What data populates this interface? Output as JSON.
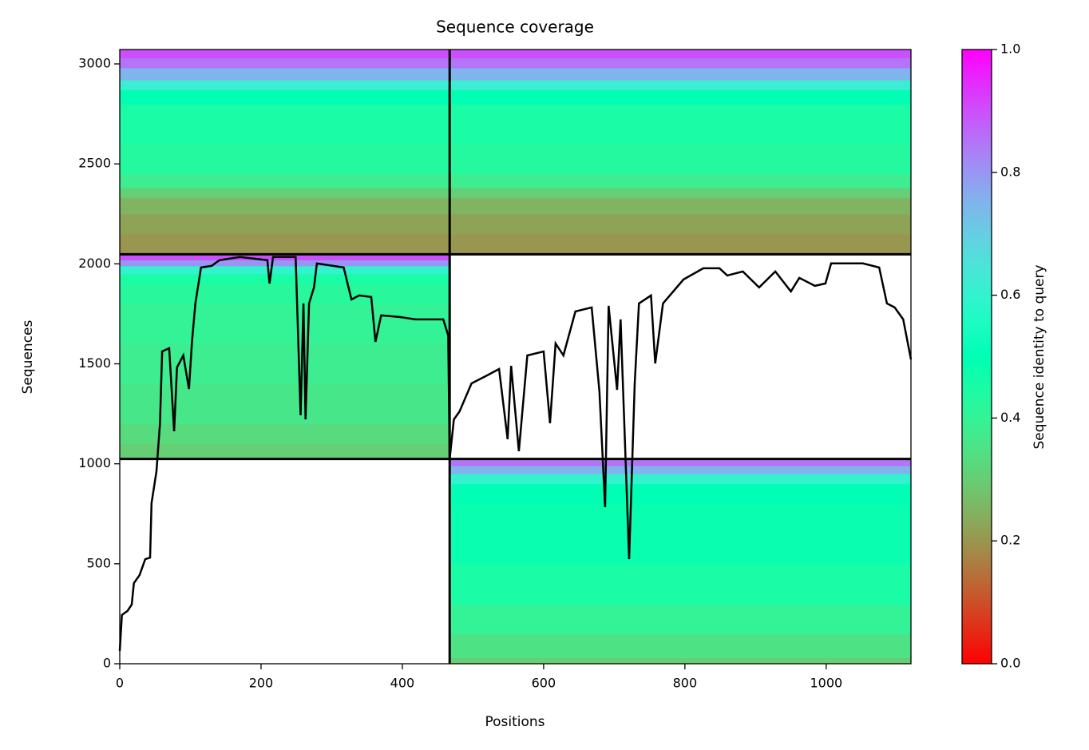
{
  "chart_data": {
    "type": "coverage",
    "title": "Sequence coverage",
    "x_label": "Positions",
    "y_label": "Sequences",
    "xlim": [
      0,
      1120
    ],
    "xticks": [
      0,
      200,
      400,
      600,
      800,
      1000
    ],
    "ylim": [
      0,
      3072
    ],
    "yticks": [
      0,
      500,
      1000,
      1500,
      2000,
      2500,
      3000
    ],
    "blocks": [
      {
        "x": [
          0,
          1120
        ],
        "rows": [
          2048,
          2150,
          2250,
          2330,
          2380,
          2450,
          2600,
          2800,
          2870,
          2920,
          2980,
          3030,
          3072
        ],
        "identity": [
          0.2,
          0.22,
          0.25,
          0.3,
          0.38,
          0.43,
          0.45,
          0.5,
          0.62,
          0.75,
          0.85,
          0.9
        ]
      },
      {
        "x": [
          0,
          467
        ],
        "rows": [
          1024,
          1100,
          1200,
          1400,
          1600,
          1800,
          1900,
          1950,
          1990,
          2020,
          2048
        ],
        "identity": [
          0.3,
          0.33,
          0.36,
          0.38,
          0.4,
          0.42,
          0.45,
          0.6,
          0.8,
          0.9
        ]
      },
      {
        "x": [
          467,
          1120
        ],
        "rows": [
          0,
          30,
          150,
          300,
          500,
          800,
          900,
          950,
          990,
          1024
        ],
        "identity": [
          0.3,
          0.35,
          0.4,
          0.45,
          0.48,
          0.5,
          0.6,
          0.75,
          0.85
        ]
      }
    ],
    "dividers": {
      "x": [
        467
      ],
      "y": [
        1024,
        2048
      ]
    },
    "coverage": {
      "color": "#000000",
      "x": [
        0,
        3,
        11,
        17,
        20,
        28,
        36,
        43,
        45,
        52,
        57,
        60,
        70,
        77,
        81,
        90,
        98,
        102,
        107,
        115,
        130,
        141,
        170,
        209,
        212,
        217,
        249,
        256,
        260,
        263,
        268,
        275,
        279,
        317,
        328,
        339,
        356,
        362,
        370,
        396,
        419,
        458,
        465,
        467,
        473,
        481,
        498,
        520,
        537,
        549,
        554,
        565,
        577,
        600,
        609,
        617,
        628,
        645,
        668,
        679,
        687,
        692,
        704,
        709,
        721,
        729,
        735,
        752,
        758,
        769,
        798,
        826,
        849,
        860,
        882,
        905,
        928,
        950,
        962,
        984,
        999,
        1007,
        1052,
        1075,
        1086,
        1097,
        1109,
        1120
      ],
      "values": [
        64,
        244,
        264,
        296,
        403,
        443,
        523,
        531,
        803,
        963,
        1203,
        1562,
        1578,
        1163,
        1482,
        1542,
        1374,
        1602,
        1802,
        1982,
        1990,
        2018,
        2034,
        2018,
        1902,
        2034,
        2034,
        1243,
        1802,
        1222,
        1802,
        1882,
        2002,
        1982,
        1822,
        1842,
        1834,
        1610,
        1742,
        1734,
        1722,
        1722,
        1642,
        1023,
        1222,
        1262,
        1402,
        1442,
        1474,
        1123,
        1490,
        1063,
        1542,
        1562,
        1203,
        1602,
        1542,
        1762,
        1782,
        1362,
        783,
        1790,
        1370,
        1722,
        523,
        1402,
        1802,
        1842,
        1502,
        1802,
        1922,
        1978,
        1978,
        1942,
        1962,
        1882,
        1962,
        1862,
        1930,
        1890,
        1902,
        2002,
        2002,
        1982,
        1802,
        1782,
        1722,
        1522
      ]
    },
    "colorbar": {
      "label": "Sequence identity to query",
      "clim": [
        0,
        1
      ],
      "ticks": [
        {
          "value": 0,
          "label": "0.0"
        },
        {
          "value": 0.2,
          "label": "0.2"
        },
        {
          "value": 0.4,
          "label": "0.4"
        },
        {
          "value": 0.6,
          "label": "0.6"
        },
        {
          "value": 0.8,
          "label": "0.8"
        },
        {
          "value": 1,
          "label": "1.0"
        }
      ]
    }
  }
}
